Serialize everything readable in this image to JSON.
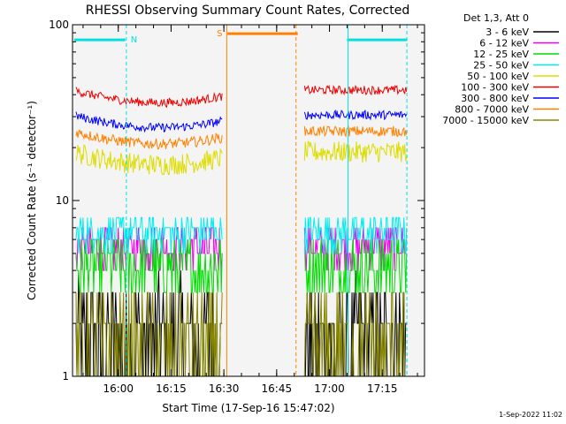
{
  "chart_data": {
    "type": "line",
    "title": "RHESSI Observing Summary Count Rates, Corrected",
    "xlabel": "Start Time (17-Sep-16 15:47:02)",
    "ylabel": "Corrected Count Rate (s⁻¹ detector⁻¹)",
    "y_scale": "log",
    "ylim": [
      1,
      100
    ],
    "y_ticks": [
      "1",
      "10",
      "100"
    ],
    "xlim_minutes_after_1547": [
      0,
      100
    ],
    "x_ticks": [
      {
        "label": "16:00",
        "t": 13
      },
      {
        "label": "16:15",
        "t": 28
      },
      {
        "label": "16:30",
        "t": 43
      },
      {
        "label": "16:45",
        "t": 58
      },
      {
        "label": "17:00",
        "t": 73
      },
      {
        "label": "17:15",
        "t": 88
      }
    ],
    "legend": {
      "placement": "right",
      "header": "Det 1,3, Att 0",
      "entries": [
        {
          "name": "3 - 6 keV",
          "color": "#000000"
        },
        {
          "name": "6 - 12 keV",
          "color": "#ee00ee"
        },
        {
          "name": "12 - 25 keV",
          "color": "#00dd00"
        },
        {
          "name": "25 - 50 keV",
          "color": "#00eeee"
        },
        {
          "name": "50 - 100 keV",
          "color": "#dddd00"
        },
        {
          "name": "100 - 300 keV",
          "color": "#ee0000"
        },
        {
          "name": "300 - 800 keV",
          "color": "#0000ff"
        },
        {
          "name": "800 - 7000 keV",
          "color": "#ff8000"
        },
        {
          "name": "7000 - 15000 keV",
          "color": "#888800"
        }
      ]
    },
    "data_gap_minutes": [
      44,
      64
    ],
    "flags": [
      {
        "label": "N",
        "color": "#00e0e0",
        "segments": [
          [
            0.5,
            15
          ],
          [
            78,
            95
          ]
        ],
        "y": 82
      },
      {
        "label": "S",
        "color": "#ff8000",
        "segments": [
          [
            44,
            64
          ]
        ],
        "y": 89
      }
    ],
    "markers": [
      {
        "t": 15.3,
        "color": "#00e0e0",
        "style": "dashed"
      },
      {
        "t": 78.3,
        "color": "#00e0e0",
        "style": "solid"
      },
      {
        "t": 95.0,
        "color": "#00e0e0",
        "style": "dashed"
      },
      {
        "t": 43.8,
        "color": "#ff8000",
        "style": "solid"
      },
      {
        "t": 63.5,
        "color": "#ff8000",
        "style": "dashed"
      }
    ],
    "series": [
      {
        "name": "3 - 6 keV",
        "color": "#000000",
        "base": 1.6,
        "spread": 0.35,
        "quant": true
      },
      {
        "name": "6 - 12 keV",
        "color": "#ee00ee",
        "base": 5.5,
        "spread": 0.12,
        "quant": true
      },
      {
        "name": "12 - 25 keV",
        "color": "#00dd00",
        "base": 4.2,
        "spread": 0.18,
        "quant": true
      },
      {
        "name": "25 - 50 keV",
        "color": "#00eeee",
        "base": 6.6,
        "spread": 0.1,
        "quant": true
      },
      {
        "name": "50 - 100 keV",
        "color": "#dddd00",
        "base": 16,
        "spread": 0.06
      },
      {
        "name": "100 - 300 keV",
        "color": "#ee0000",
        "base": 36,
        "spread": 0.025
      },
      {
        "name": "300 - 800 keV",
        "color": "#0000ff",
        "base": 26,
        "spread": 0.025
      },
      {
        "name": "800 - 7000 keV",
        "color": "#ff8000",
        "base": 21,
        "spread": 0.03
      },
      {
        "name": "7000 - 15000 keV",
        "color": "#888800",
        "base": 1.5,
        "spread": 0.3,
        "quant": true
      }
    ]
  },
  "footer": {
    "date_stamp": "1-Sep-2022 11:02"
  }
}
